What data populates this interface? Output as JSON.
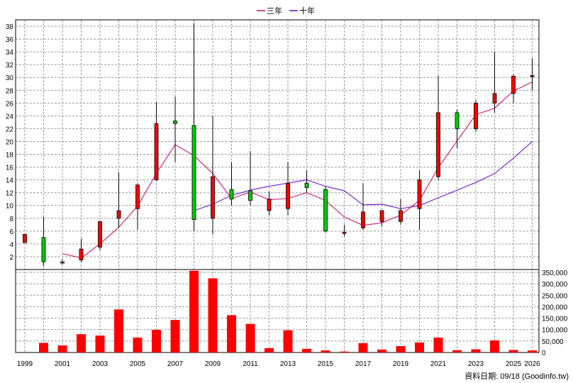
{
  "legend": [
    {
      "label": "三年",
      "color": "#cc0066"
    },
    {
      "label": "十年",
      "color": "#6600cc"
    }
  ],
  "footer": {
    "date_label": "資料日期: 09/18",
    "source": "(Goodinfo.tw)"
  },
  "colors": {
    "up": "#ff0000",
    "down": "#00cc00",
    "volume": "#ff0000",
    "grid": "#999999"
  },
  "chart_data": [
    {
      "type": "candlestick",
      "title": "",
      "x": [
        1999,
        2000,
        2001,
        2002,
        2003,
        2004,
        2005,
        2006,
        2007,
        2008,
        2009,
        2010,
        2011,
        2012,
        2013,
        2014,
        2015,
        2016,
        2017,
        2018,
        2019,
        2020,
        2021,
        2022,
        2023,
        2024,
        2025,
        2026
      ],
      "open": [
        4.2,
        5.0,
        1.2,
        1.5,
        3.5,
        8.0,
        9.5,
        14.0,
        23.2,
        22.5,
        8.0,
        12.5,
        12.3,
        9.2,
        9.5,
        13.5,
        12.5,
        5.8,
        6.5,
        7.5,
        7.5,
        9.5,
        14.5,
        24.5,
        22.0,
        26.0,
        27.5,
        30.2
      ],
      "close": [
        5.5,
        1.2,
        1.0,
        3.2,
        7.5,
        9.2,
        13.2,
        22.8,
        22.8,
        7.8,
        14.5,
        11.0,
        10.8,
        11.0,
        13.5,
        12.8,
        6.0,
        5.8,
        9.0,
        9.2,
        9.2,
        14.0,
        24.5,
        22.0,
        26.0,
        27.5,
        30.2,
        30.3
      ],
      "high": [
        5.5,
        8.2,
        1.6,
        4.8,
        7.5,
        15.2,
        13.5,
        26.2,
        27.0,
        38.5,
        24.0,
        16.8,
        18.5,
        12.2,
        16.8,
        15.5,
        13.0,
        7.0,
        13.5,
        9.2,
        11.0,
        15.5,
        30.3,
        25.0,
        26.5,
        34.0,
        30.5,
        33.0
      ],
      "low": [
        4.2,
        0.5,
        0.8,
        1.2,
        3.0,
        6.5,
        6.2,
        13.8,
        16.8,
        6.0,
        5.5,
        10.0,
        10.0,
        8.5,
        8.5,
        12.0,
        5.8,
        5.2,
        6.2,
        6.8,
        7.0,
        6.2,
        14.0,
        19.0,
        21.5,
        24.5,
        26.0,
        28.0
      ],
      "ma3_x": [
        2001,
        2002,
        2003,
        2004,
        2005,
        2006,
        2007,
        2008,
        2009,
        2010,
        2011,
        2012,
        2013,
        2014,
        2015,
        2016,
        2017,
        2018,
        2019,
        2020,
        2021,
        2022,
        2023,
        2024,
        2025,
        2026
      ],
      "ma3": [
        2.5,
        1.8,
        4.0,
        6.6,
        9.9,
        15.0,
        19.5,
        17.8,
        15.0,
        11.1,
        12.1,
        10.9,
        11.1,
        12.0,
        10.8,
        8.2,
        6.9,
        7.3,
        8.5,
        10.8,
        15.9,
        20.1,
        24.2,
        25.2,
        27.9,
        29.3
      ],
      "ma10_x": [
        2008,
        2009,
        2010,
        2011,
        2012,
        2013,
        2014,
        2015,
        2016,
        2017,
        2018,
        2019,
        2020,
        2021,
        2022,
        2023,
        2024,
        2025,
        2026
      ],
      "ma10": [
        9.2,
        10.2,
        11.6,
        12.4,
        13.0,
        13.5,
        14.0,
        13.0,
        12.3,
        10.1,
        10.2,
        9.5,
        10.0,
        11.2,
        12.4,
        13.6,
        15.0,
        17.4,
        20.0
      ],
      "ylim": [
        0,
        39
      ],
      "yticks": [
        2,
        4,
        6,
        8,
        10,
        12,
        14,
        16,
        18,
        20,
        22,
        24,
        26,
        28,
        30,
        32,
        34,
        36,
        38
      ],
      "xticks": [
        1999,
        2001,
        2003,
        2005,
        2007,
        2009,
        2011,
        2013,
        2015,
        2017,
        2019,
        2021,
        2023,
        2025,
        2026
      ],
      "grid": true,
      "legend_position": "top-center"
    },
    {
      "type": "bar",
      "title": "",
      "x": [
        2000,
        2001,
        2002,
        2003,
        2004,
        2005,
        2006,
        2007,
        2008,
        2009,
        2010,
        2011,
        2012,
        2013,
        2014,
        2015,
        2016,
        2017,
        2018,
        2019,
        2020,
        2021,
        2022,
        2023,
        2024,
        2025,
        2026
      ],
      "values": [
        42000,
        31000,
        80000,
        74000,
        188000,
        65000,
        99000,
        142000,
        357000,
        324000,
        163000,
        125000,
        19000,
        97000,
        16000,
        9000,
        4000,
        41000,
        13000,
        28000,
        44000,
        65000,
        10000,
        14000,
        53000,
        11000,
        9000
      ],
      "ylim": [
        0,
        350000
      ],
      "ytick_labels": [
        "0",
        "50,000",
        "100,000",
        "150,000",
        "200,000",
        "250,000",
        "300,000",
        "350,000"
      ],
      "yticks": [
        0,
        50000,
        100000,
        150000,
        200000,
        250000,
        300000,
        350000
      ],
      "grid": true
    }
  ]
}
